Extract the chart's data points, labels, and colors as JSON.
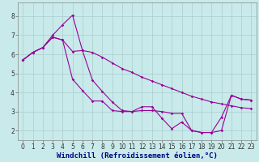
{
  "xlabel": "Windchill (Refroidissement éolien,°C)",
  "ylabel": "",
  "background_color": "#c8eaea",
  "grid_color": "#aacccc",
  "line_color": "#990099",
  "xlim": [
    -0.5,
    23.5
  ],
  "ylim": [
    1.5,
    8.7
  ],
  "xticks": [
    0,
    1,
    2,
    3,
    4,
    5,
    6,
    7,
    8,
    9,
    10,
    11,
    12,
    13,
    14,
    15,
    16,
    17,
    18,
    19,
    20,
    21,
    22,
    23
  ],
  "yticks": [
    2,
    3,
    4,
    5,
    6,
    7,
    8
  ],
  "line1_x": [
    0,
    1,
    2,
    3,
    4,
    5,
    6,
    7,
    8,
    9,
    10,
    11,
    12,
    13,
    14,
    15,
    16,
    17,
    18,
    19,
    20,
    21,
    22,
    23
  ],
  "line1_y": [
    5.7,
    6.1,
    6.35,
    6.9,
    6.75,
    6.15,
    6.2,
    6.1,
    5.85,
    5.55,
    5.25,
    5.05,
    4.8,
    4.6,
    4.4,
    4.2,
    4.0,
    3.8,
    3.65,
    3.5,
    3.4,
    3.3,
    3.2,
    3.15
  ],
  "line2_x": [
    0,
    1,
    2,
    3,
    4,
    5,
    6,
    7,
    8,
    9,
    10,
    11,
    12,
    13,
    14,
    15,
    16,
    17,
    18,
    19,
    20,
    21,
    22,
    23
  ],
  "line2_y": [
    5.7,
    6.1,
    6.35,
    7.0,
    7.55,
    8.05,
    6.2,
    4.65,
    4.05,
    3.5,
    3.05,
    3.0,
    3.25,
    3.25,
    2.65,
    2.1,
    2.45,
    2.0,
    1.9,
    1.9,
    2.7,
    3.85,
    3.65,
    3.6
  ],
  "line3_x": [
    0,
    1,
    2,
    3,
    4,
    5,
    6,
    7,
    8,
    9,
    10,
    11,
    12,
    13,
    14,
    15,
    16,
    17,
    18,
    19,
    20,
    21,
    22,
    23
  ],
  "line3_y": [
    5.7,
    6.1,
    6.35,
    6.9,
    6.75,
    4.7,
    4.1,
    3.55,
    3.55,
    3.05,
    3.0,
    3.0,
    3.05,
    3.05,
    3.0,
    2.9,
    2.9,
    2.0,
    1.9,
    1.9,
    2.0,
    3.85,
    3.65,
    3.6
  ],
  "marker": "D",
  "markersize": 1.8,
  "linewidth": 0.8,
  "tick_fontsize": 5.5,
  "label_fontsize": 6.5,
  "spine_color": "#888888"
}
